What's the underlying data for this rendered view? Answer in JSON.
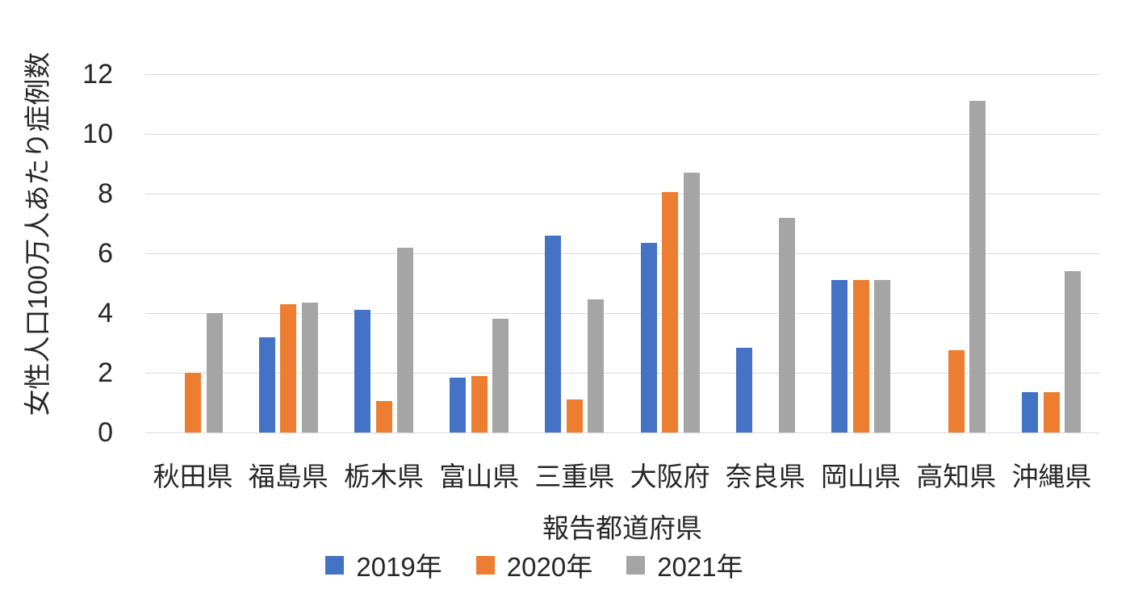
{
  "chart_data": {
    "type": "bar",
    "title": "",
    "xlabel": "報告都道府県",
    "ylabel": "女性人口100万人あたり症例数",
    "categories": [
      "秋田県",
      "福島県",
      "栃木県",
      "富山県",
      "三重県",
      "大阪府",
      "奈良県",
      "岡山県",
      "高知県",
      "沖縄県"
    ],
    "series": [
      {
        "name": "2019年",
        "color": "#4472C4",
        "values": [
          0,
          3.2,
          4.1,
          1.85,
          6.6,
          6.35,
          2.85,
          5.1,
          0,
          1.35
        ]
      },
      {
        "name": "2020年",
        "color": "#ED7D31",
        "values": [
          2,
          4.3,
          1.05,
          1.9,
          1.1,
          8.05,
          0,
          5.1,
          2.75,
          1.35
        ]
      },
      {
        "name": "2021年",
        "color": "#A5A5A5",
        "values": [
          4,
          4.35,
          6.2,
          3.8,
          4.45,
          8.7,
          7.2,
          5.1,
          11.1,
          5.4
        ]
      }
    ],
    "ylim": [
      0,
      12
    ],
    "ytick_step": 2,
    "yticks": [
      0,
      2,
      4,
      6,
      8,
      10,
      12
    ],
    "grid": true,
    "legend_position": "bottom"
  },
  "colors": {
    "grid": "#D9D9D9",
    "axis_text": "#262626",
    "background": "#FFFFFF"
  }
}
